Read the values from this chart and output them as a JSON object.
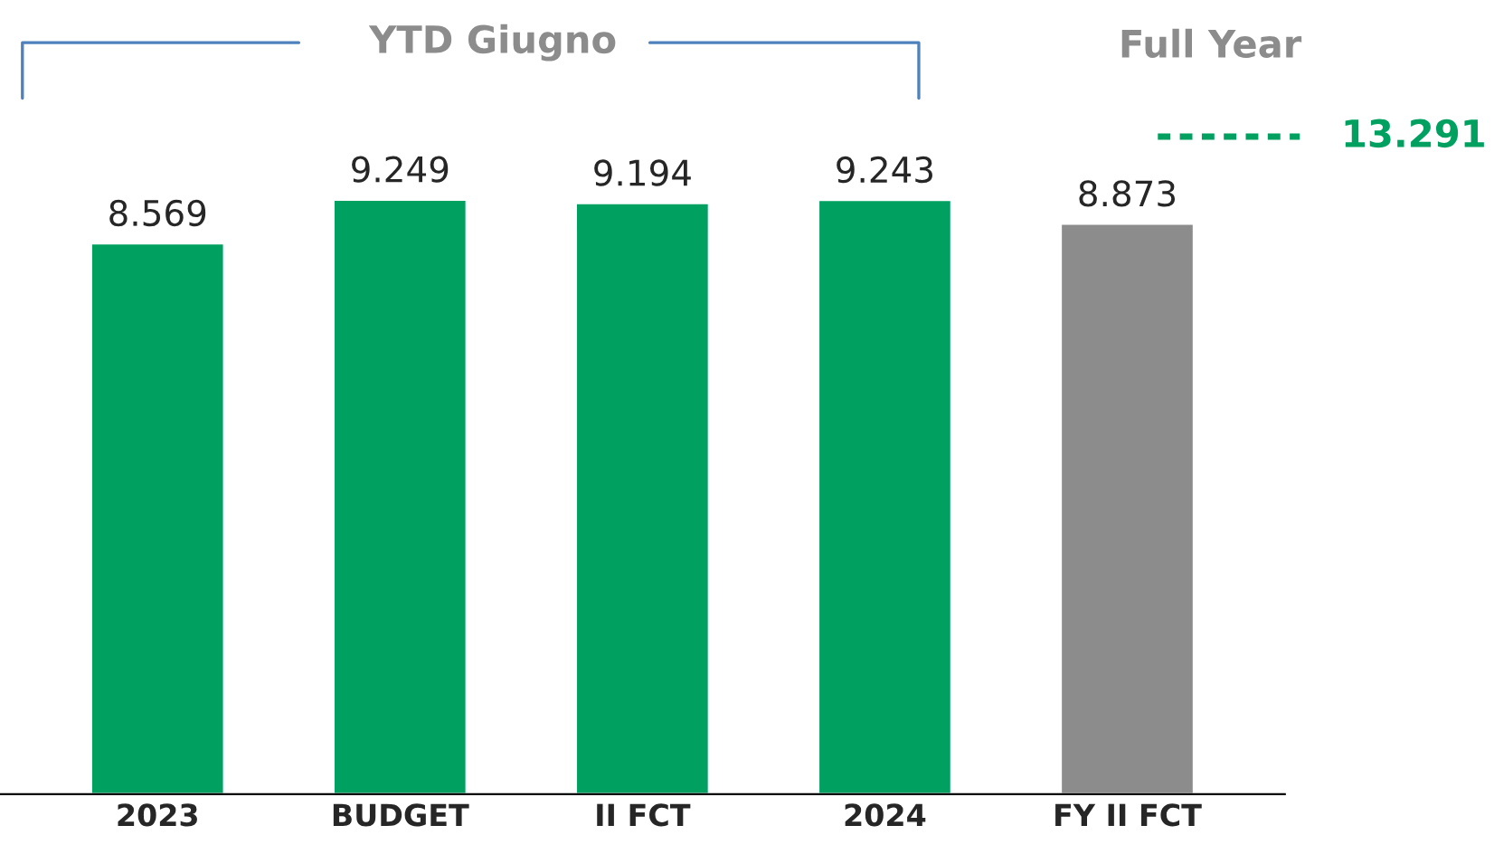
{
  "chart_data": {
    "type": "bar",
    "categories": [
      "2023",
      "BUDGET",
      "II FCT",
      "2024",
      "FY II FCT"
    ],
    "values": [
      8569,
      9249,
      9194,
      9243,
      8873
    ],
    "value_labels": [
      "8.569",
      "9.249",
      "9.194",
      "9.243",
      "8.873"
    ],
    "colors": [
      "#00a060",
      "#00a060",
      "#00a060",
      "#00a060",
      "#8c8c8c"
    ],
    "grid": false,
    "legend": false,
    "annotations": [
      "YTD Giugno",
      "Full Year",
      "13.291"
    ]
  }
}
